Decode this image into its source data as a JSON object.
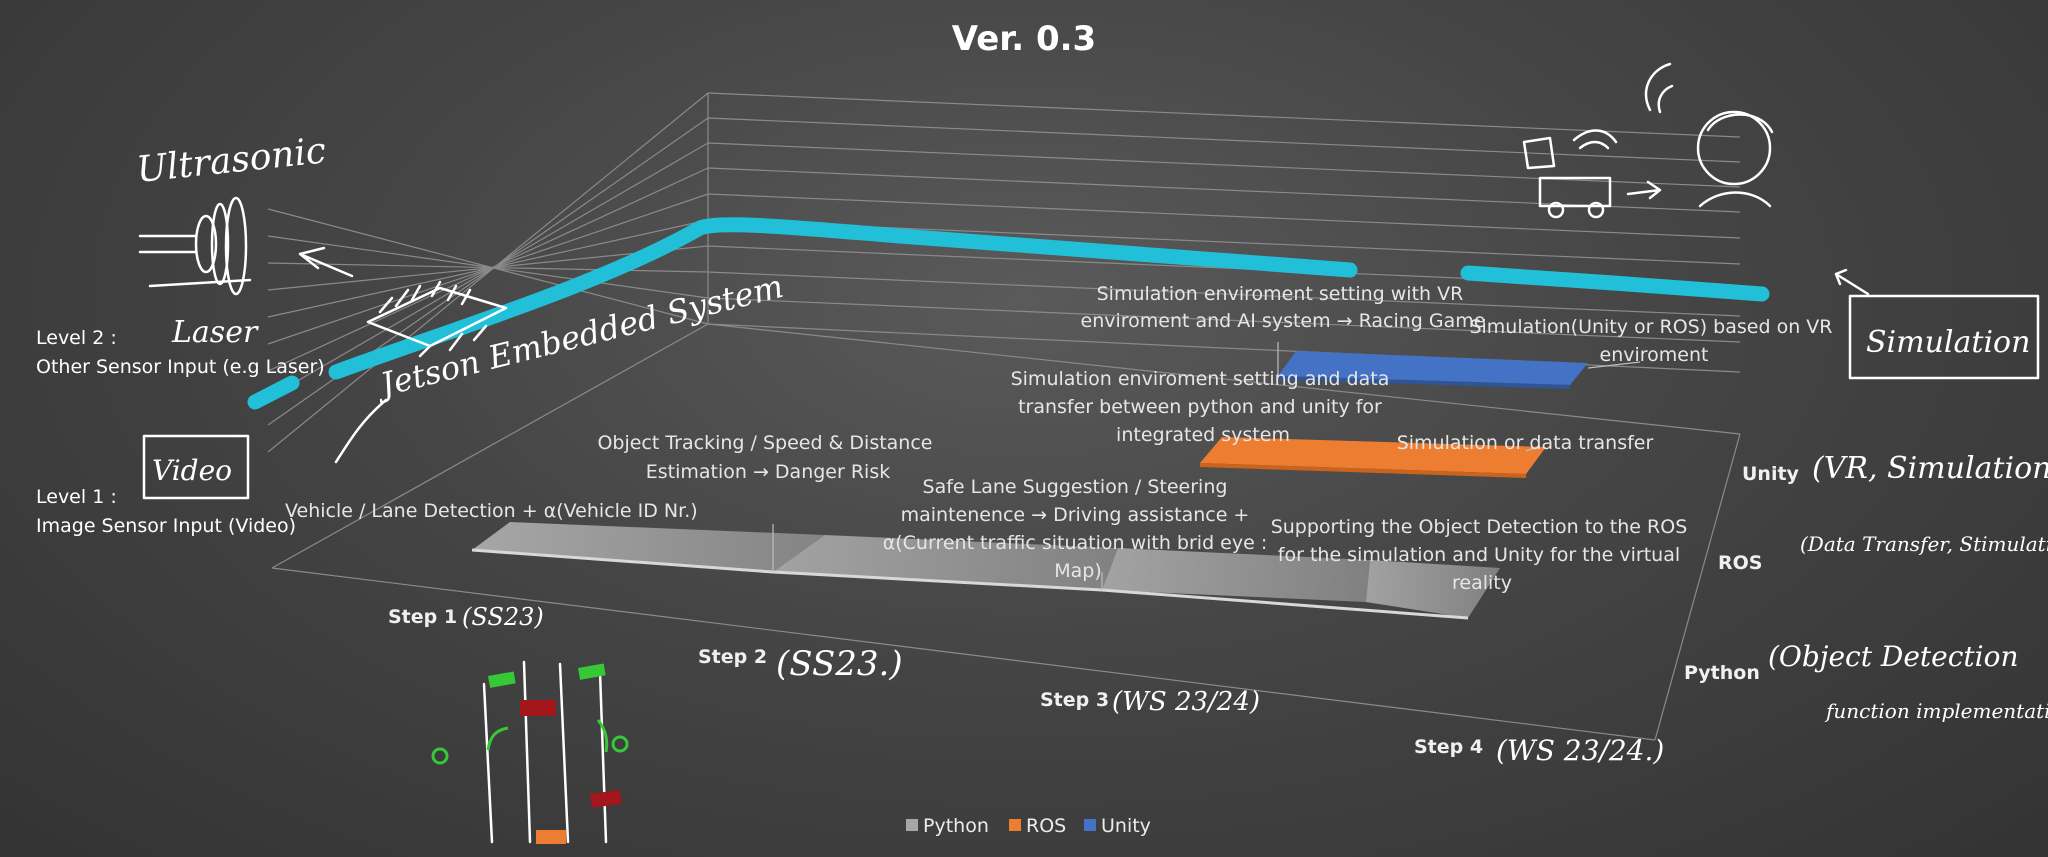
{
  "chart_data": {
    "type": "bar",
    "title": "Ver. 0.3",
    "categories": [
      "Step 1",
      "Step 2",
      "Step 3",
      "Step 4"
    ],
    "category_notes": [
      "(SS23)",
      "(SS23.)",
      "(WS 23/24)",
      "(WS 23/24.)"
    ],
    "series": [
      {
        "name": "Python",
        "color": "#a6a6a6",
        "values": [
          1,
          1,
          1,
          1
        ]
      },
      {
        "name": "ROS",
        "color": "#ed7d31",
        "values": [
          0,
          0,
          1,
          1
        ]
      },
      {
        "name": "Unity",
        "color": "#4472c4",
        "values": [
          0,
          0,
          1,
          1
        ]
      }
    ],
    "series_notes": [
      "(VR, Simulation)",
      "(Data Transfer, Stimulation)",
      "(Object Detection",
      "function implementation)"
    ],
    "legend_position": "bottom",
    "annotations": {
      "python": [
        "Vehicle / Lane Detection + α(Vehicle ID Nr.)",
        "Object Tracking / Speed & Distance Estimation → Danger Risk",
        "Safe Lane Suggestion / Steering maintenence → Driving assistance + α(Current traffic situation with brid eye : Map)",
        "Supporting the Object Detection to the ROS for the simulation  and Unity for the virtual reality"
      ],
      "ros": [
        "Simulation enviroment setting and data transfer between python and unity for integrated system",
        "Simulation or data transfer"
      ],
      "unity": [
        "Simulation enviroment setting with VR enviroment and AI system → Racing Game",
        "Simulation(Unity or ROS) based on VR enviroment"
      ]
    },
    "levels": [
      "Level 2 :",
      "Other Sensor Input (e.g Laser)",
      "Level 1 :",
      "Image Sensor Input (Video)"
    ],
    "handwriting": [
      "Ultrasonic",
      "Laser",
      "Video",
      "Jetson Embedded System",
      "Simulation"
    ],
    "highlight_color": "#22c0d8",
    "grid": true
  }
}
